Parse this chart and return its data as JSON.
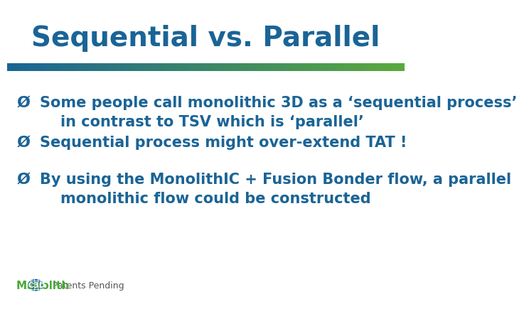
{
  "title": "Sequential vs. Parallel",
  "title_color": "#1a6496",
  "title_fontsize": 28,
  "bg_color": "#ffffff",
  "bar_left_color": "#1a6496",
  "bar_right_color": "#5aaa3c",
  "bullet_color": "#1a6496",
  "bullets": [
    "Some people call monolithic 3D as a ‘sequential process’\n    in contrast to TSV which is ‘parallel’",
    "Sequential process might over-extend TAT !",
    "By using the MonolithIC + Fusion Bonder flow, a parallel\n    monolithic flow could be constructed"
  ],
  "bullet_fontsize": 15,
  "footer_fontsize": 9,
  "footer_color": "#555555",
  "logo_monolith_color": "#4aaa3c",
  "logo_ic3d_color": "#1a6496"
}
